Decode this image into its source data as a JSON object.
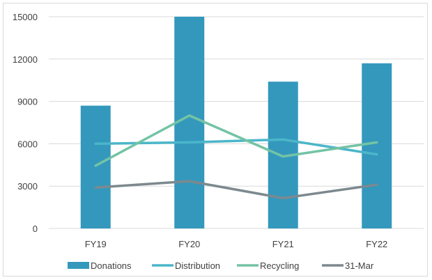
{
  "chart_data": {
    "type": "bar+line",
    "title": "",
    "xlabel": "",
    "ylabel": "",
    "categories": [
      "FY19",
      "FY20",
      "FY21",
      "FY22"
    ],
    "ylim": [
      0,
      15000
    ],
    "yticks": [
      "0",
      "3000",
      "6000",
      "9000",
      "12000",
      "15000"
    ],
    "grid": true,
    "legend": "bottom",
    "series": [
      {
        "name": "Donations",
        "kind": "bar",
        "color": "#3498bd",
        "values": [
          8700,
          15000,
          10400,
          11700
        ]
      },
      {
        "name": "Distribution",
        "kind": "line",
        "color": "#4bb6c9",
        "values": [
          6000,
          6100,
          6300,
          5250
        ]
      },
      {
        "name": "Recycling",
        "kind": "line",
        "color": "#73c3a4",
        "values": [
          4450,
          8000,
          5100,
          6100
        ]
      },
      {
        "name": "31-Mar",
        "kind": "line",
        "color": "#7c898e",
        "values": [
          2900,
          3350,
          2150,
          3100
        ]
      }
    ]
  }
}
